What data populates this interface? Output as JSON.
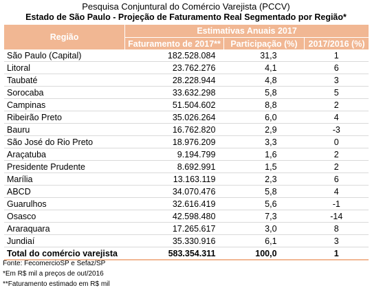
{
  "title": "Pesquisa Conjuntural do Comércio Varejista (PCCV)",
  "subtitle": "Estado de São Paulo - Projeção de Faturamento Real Segmentado por Região*",
  "header": {
    "regiao": "Região",
    "estimativas": "Estimativas Anuais 2017",
    "faturamento": "Faturamento de 2017**",
    "participacao": "Participação (%)",
    "variacao": "2017/2016 (%)"
  },
  "rows": [
    {
      "regiao": "São Paulo (Capital)",
      "faturamento": "182.528.084",
      "participacao": "31,3",
      "variacao": "1"
    },
    {
      "regiao": "Litoral",
      "faturamento": "23.762.276",
      "participacao": "4,1",
      "variacao": "6"
    },
    {
      "regiao": "Taubaté",
      "faturamento": "28.228.944",
      "participacao": "4,8",
      "variacao": "3"
    },
    {
      "regiao": "Sorocaba",
      "faturamento": "33.632.298",
      "participacao": "5,8",
      "variacao": "5"
    },
    {
      "regiao": "Campinas",
      "faturamento": "51.504.602",
      "participacao": "8,8",
      "variacao": "2"
    },
    {
      "regiao": "Ribeirão Preto",
      "faturamento": "35.026.264",
      "participacao": "6,0",
      "variacao": "4"
    },
    {
      "regiao": "Bauru",
      "faturamento": "16.762.820",
      "participacao": "2,9",
      "variacao": "-3"
    },
    {
      "regiao": "São José do Rio Preto",
      "faturamento": "18.976.209",
      "participacao": "3,3",
      "variacao": "0"
    },
    {
      "regiao": "Araçatuba",
      "faturamento": "9.194.799",
      "participacao": "1,6",
      "variacao": "2"
    },
    {
      "regiao": "Presidente Prudente",
      "faturamento": "8.692.991",
      "participacao": "1,5",
      "variacao": "2"
    },
    {
      "regiao": "Marília",
      "faturamento": "13.163.119",
      "participacao": "2,3",
      "variacao": "6"
    },
    {
      "regiao": "ABCD",
      "faturamento": "34.070.476",
      "participacao": "5,8",
      "variacao": "4"
    },
    {
      "regiao": "Guarulhos",
      "faturamento": "32.616.419",
      "participacao": "5,6",
      "variacao": "-1"
    },
    {
      "regiao": "Osasco",
      "faturamento": "42.598.480",
      "participacao": "7,3",
      "variacao": "-14"
    },
    {
      "regiao": "Araraquara",
      "faturamento": "17.265.617",
      "participacao": "3,0",
      "variacao": "8"
    },
    {
      "regiao": "Jundiaí",
      "faturamento": "35.330.916",
      "participacao": "6,1",
      "variacao": "3"
    }
  ],
  "total": {
    "regiao": "Total do comércio varejista",
    "faturamento": "583.354.311",
    "participacao": "100,0",
    "variacao": "1"
  },
  "notes": [
    "Fonte: FecomercioSP e Sefaz/SP",
    "*Em R$ mil a preços de out/2016",
    "**Faturamento estimado em R$ mil"
  ],
  "colors": {
    "header_bg": "#f1b793",
    "header_text": "#ffffff"
  }
}
